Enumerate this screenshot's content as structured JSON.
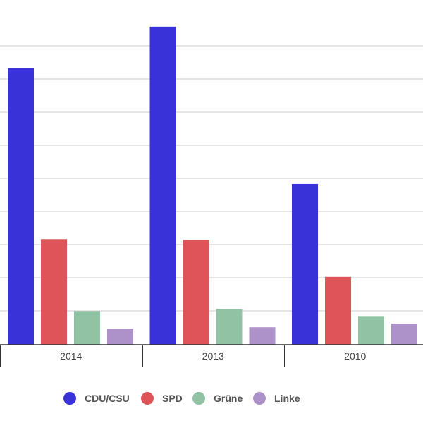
{
  "chart_data": {
    "type": "bar",
    "categories": [
      "2014",
      "2013",
      "2010"
    ],
    "series": [
      {
        "name": "CDU/CSU",
        "color": "#3a32d9",
        "values": [
          396,
          455,
          230
        ]
      },
      {
        "name": "SPD",
        "color": "#de5458",
        "values": [
          151,
          150,
          97
        ]
      },
      {
        "name": "Grüne",
        "color": "#8fc3a4",
        "values": [
          48,
          51,
          41
        ]
      },
      {
        "name": "Linke",
        "color": "#ad92c9",
        "values": [
          23,
          25,
          30
        ]
      }
    ],
    "ylim": [
      0,
      475
    ],
    "grid": true,
    "legend_position": "bottom"
  }
}
